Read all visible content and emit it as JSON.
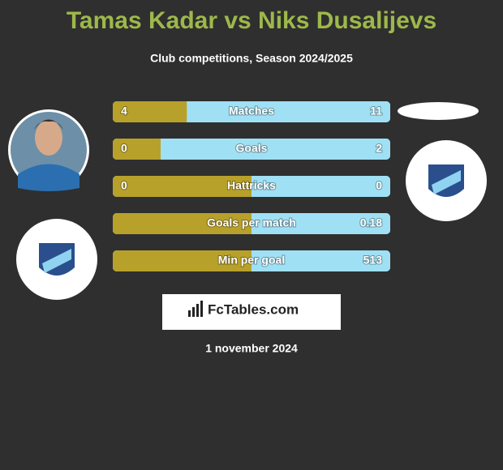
{
  "header": {
    "title": "Tamas Kadar vs Niks Dusalijevs",
    "subtitle": "Club competitions, Season 2024/2025"
  },
  "rows": [
    {
      "label": "Matches",
      "left": 4,
      "right": 11
    },
    {
      "label": "Goals",
      "left": 0,
      "right": 2
    },
    {
      "label": "Hattricks",
      "left": 0,
      "right": 0
    },
    {
      "label": "Goals per match",
      "right": 0.18
    },
    {
      "label": "Min per goal",
      "right": 513
    }
  ],
  "brand": "FcTables.com",
  "date": "1 november 2024"
}
